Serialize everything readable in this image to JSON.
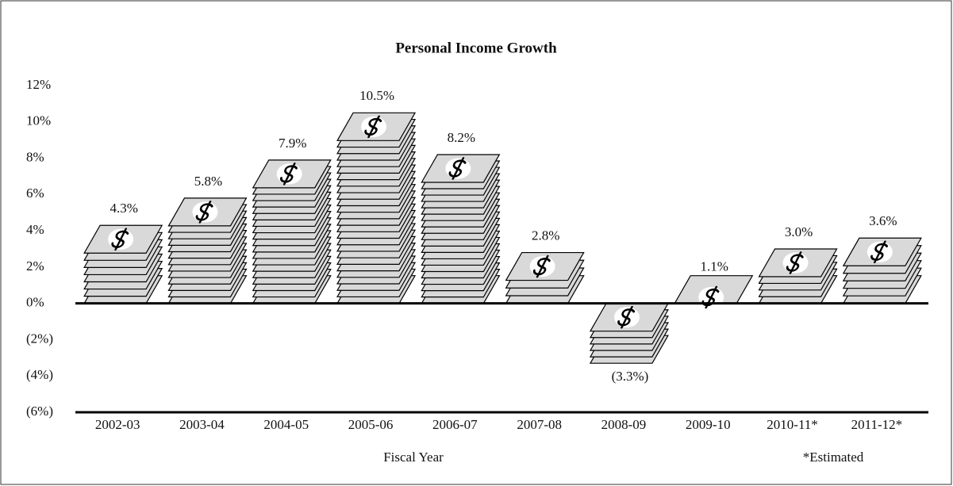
{
  "chart_data": {
    "type": "pictograph-bar",
    "title": "Personal Income Growth",
    "categories": [
      "2002-03",
      "2003-04",
      "2004-05",
      "2005-06",
      "2006-07",
      "2007-08",
      "2008-09",
      "2009-10",
      "2010-11*",
      "2011-12*"
    ],
    "values": [
      4.3,
      5.8,
      7.9,
      10.5,
      8.2,
      2.8,
      -3.3,
      1.1,
      3.0,
      3.6
    ],
    "value_labels": [
      "4.3%",
      "5.8%",
      "7.9%",
      "10.5%",
      "8.2%",
      "2.8%",
      "(3.3%)",
      "1.1%",
      "3.0%",
      "3.6%"
    ],
    "color": "#d9d9d9",
    "ylim": [
      -6,
      12
    ],
    "yticks": [
      {
        "value": 12,
        "label": "12%"
      },
      {
        "value": 10,
        "label": "10%"
      },
      {
        "value": 8,
        "label": "8%"
      },
      {
        "value": 6,
        "label": "6%"
      },
      {
        "value": 4,
        "label": "4%"
      },
      {
        "value": 2,
        "label": "2%"
      },
      {
        "value": 0,
        "label": "0%"
      },
      {
        "value": -2,
        "label": "(2%)"
      },
      {
        "value": -4,
        "label": "(4%)"
      },
      {
        "value": -6,
        "label": "(6%)"
      }
    ],
    "xlabel": "Fiscal Year",
    "note": "*Estimated",
    "grid": false
  }
}
